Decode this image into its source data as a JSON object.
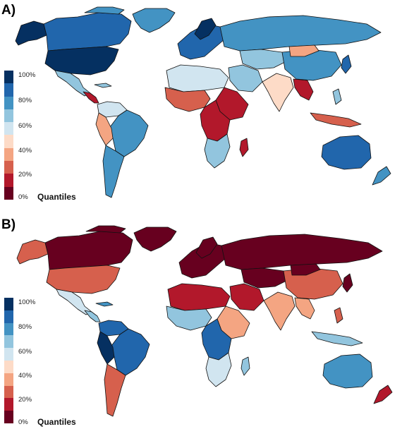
{
  "panels": [
    {
      "label": "A)",
      "legend": {
        "ticks": [
          "100%",
          "80%",
          "60%",
          "40%",
          "20%",
          "0%"
        ],
        "title": "Quantiles"
      }
    },
    {
      "label": "B)",
      "legend": {
        "ticks": [
          "100%",
          "80%",
          "60%",
          "40%",
          "20%",
          "0%"
        ],
        "title": "Quantiles"
      }
    }
  ],
  "colors": {
    "scale": [
      "#67001f",
      "#b2182b",
      "#d6604d",
      "#f4a582",
      "#fddbc7",
      "#d1e5f0",
      "#92c5de",
      "#4393c3",
      "#2166ac",
      "#053061"
    ],
    "ocean": "#ffffff",
    "border": "#111111"
  }
}
